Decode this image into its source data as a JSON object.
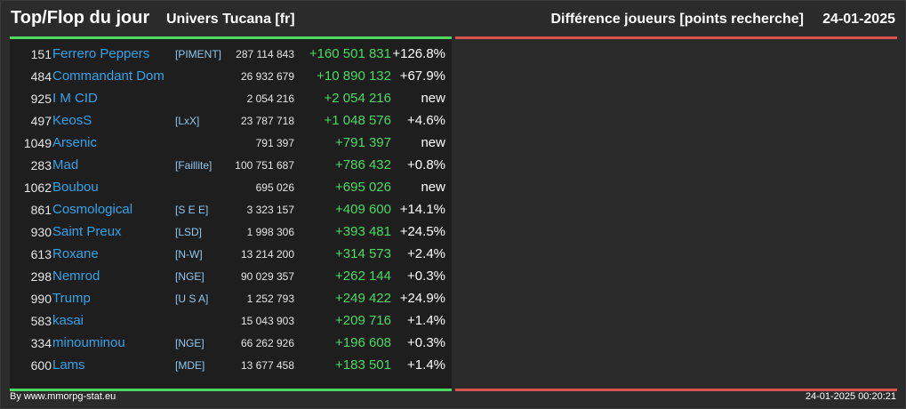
{
  "header": {
    "title": "Top/Flop du jour",
    "subtitle": "Univers Tucana [fr]",
    "right_title": "Différence joueurs [points recherche]",
    "date": "24-01-2025"
  },
  "top_rows": [
    {
      "rank": "151",
      "name": "Ferrero Peppers",
      "alliance": "[PIMENT]",
      "points": "287 114 843",
      "diff": "+160 501 831",
      "pct": "+126.8%"
    },
    {
      "rank": "484",
      "name": "Commandant Dom",
      "alliance": "",
      "points": "26 932 679",
      "diff": "+10 890 132",
      "pct": "+67.9%"
    },
    {
      "rank": "925",
      "name": "I M CID",
      "alliance": "",
      "points": "2 054 216",
      "diff": "+2 054 216",
      "pct": "new"
    },
    {
      "rank": "497",
      "name": "KeosS",
      "alliance": "[LxX]",
      "points": "23 787 718",
      "diff": "+1 048 576",
      "pct": "+4.6%"
    },
    {
      "rank": "1049",
      "name": "Arsenic",
      "alliance": "",
      "points": "791 397",
      "diff": "+791 397",
      "pct": "new"
    },
    {
      "rank": "283",
      "name": "Mad",
      "alliance": "[Faillite]",
      "points": "100 751 687",
      "diff": "+786 432",
      "pct": "+0.8%"
    },
    {
      "rank": "1062",
      "name": "Boubou",
      "alliance": "",
      "points": "695 026",
      "diff": "+695 026",
      "pct": "new"
    },
    {
      "rank": "861",
      "name": "Cosmological",
      "alliance": "[S E E]",
      "points": "3 323 157",
      "diff": "+409 600",
      "pct": "+14.1%"
    },
    {
      "rank": "930",
      "name": "Saint Preux",
      "alliance": "[LSD]",
      "points": "1 998 306",
      "diff": "+393 481",
      "pct": "+24.5%"
    },
    {
      "rank": "613",
      "name": "Roxane",
      "alliance": "[N-W]",
      "points": "13 214 200",
      "diff": "+314 573",
      "pct": "+2.4%"
    },
    {
      "rank": "298",
      "name": "Nemrod",
      "alliance": "[NGE]",
      "points": "90 029 357",
      "diff": "+262 144",
      "pct": "+0.3%"
    },
    {
      "rank": "990",
      "name": "Trump",
      "alliance": "[U S A]",
      "points": "1 252 793",
      "diff": "+249 422",
      "pct": "+24.9%"
    },
    {
      "rank": "583",
      "name": "kasai",
      "alliance": "",
      "points": "15 043 903",
      "diff": "+209 716",
      "pct": "+1.4%"
    },
    {
      "rank": "334",
      "name": "minouminou",
      "alliance": "[NGE]",
      "points": "66 262 926",
      "diff": "+196 608",
      "pct": "+0.3%"
    },
    {
      "rank": "600",
      "name": "Lams",
      "alliance": "[MDE]",
      "points": "13 677 458",
      "diff": "+183 501",
      "pct": "+1.4%"
    }
  ],
  "footer": {
    "left": "By www.mmorpg-stat.eu",
    "right": "24-01-2025 00:20:21"
  },
  "colors": {
    "top_accent": "#4cd964",
    "flop_accent": "#d9534f",
    "name": "#33a3e8"
  }
}
